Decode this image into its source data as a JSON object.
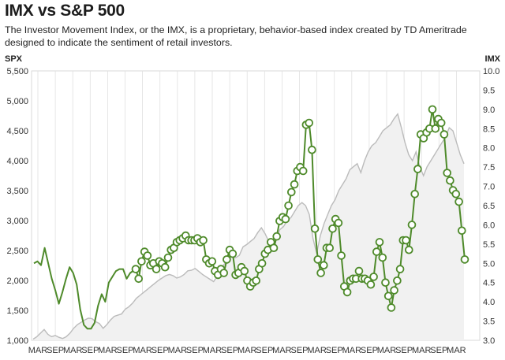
{
  "chart_data": {
    "type": "line",
    "title": "IMX vs S&P 500",
    "subtitle": "The Investor Movement Index, or the IMX, is a proprietary, behavior-based index created by TD Ameritrade designed to indicate the sentiment of retail investors.",
    "left_axis_label": "SPX",
    "right_axis_label": "IMX",
    "left_ylim": [
      1000,
      5500
    ],
    "right_ylim": [
      3.0,
      10.0
    ],
    "left_ticks": [
      "1,000",
      "1,500",
      "2,000",
      "2,500",
      "3,000",
      "3,500",
      "4,000",
      "4,500",
      "5,000",
      "5,500"
    ],
    "right_ticks": [
      "3.0",
      "3.5",
      "4.0",
      "4.5",
      "5.0",
      "5.5",
      "6.0",
      "6.5",
      "7.0",
      "7.5",
      "8.0",
      "8.5",
      "9.0",
      "9.5",
      "10.0"
    ],
    "x_ticks": [
      "MAR",
      "SEP",
      "MAR",
      "SEP",
      "MAR",
      "SEP",
      "MAR",
      "SEP",
      "MAR",
      "SEP",
      "MAR",
      "SEP",
      "MAR",
      "SEP",
      "MAR",
      "SEP",
      "MAR",
      "SEP",
      "MAR",
      "SEP",
      "MAR",
      "SEP",
      "MAR",
      "SEP",
      "MAR"
    ],
    "colors": {
      "imx": "#4e8a2a",
      "spx": "#bbbbbb",
      "spx_fill": "#f1f1f1",
      "grid": "#e0e0e0"
    },
    "series": [
      {
        "name": "IMX",
        "axis": "right",
        "style": "line",
        "values": [
          5.0,
          5.05,
          4.95,
          5.4,
          5.0,
          4.6,
          4.3,
          3.95,
          4.25,
          4.6,
          4.9,
          4.75,
          4.45,
          3.8,
          3.4,
          3.3,
          3.3,
          3.45,
          3.9,
          4.2,
          4.0,
          4.5,
          4.65,
          4.8,
          4.85,
          4.85,
          4.6,
          4.75
        ]
      },
      {
        "name": "IMX",
        "axis": "right",
        "style": "markers",
        "values": [
          4.85,
          4.6,
          5.05,
          5.3,
          5.2,
          4.95,
          5.0,
          4.85,
          5.05,
          5.0,
          4.9,
          5.15,
          5.35,
          5.4,
          5.55,
          5.6,
          5.65,
          5.72,
          5.6,
          5.6,
          5.6,
          5.65,
          5.55,
          5.6,
          5.1,
          5.0,
          5.05,
          4.8,
          4.7,
          4.85,
          4.75,
          5.1,
          5.35,
          5.25,
          4.7,
          4.75,
          4.9,
          4.8,
          4.55,
          4.4,
          4.5,
          4.55,
          4.85,
          5.0,
          5.25,
          5.35,
          5.55,
          5.4,
          5.7,
          6.1,
          6.2,
          6.15,
          6.5,
          6.85,
          7.05,
          7.4,
          7.5,
          7.4,
          8.6,
          8.65,
          7.95,
          5.9,
          5.1,
          4.75,
          4.95,
          5.4,
          5.4,
          5.9,
          6.15,
          6.05,
          5.2,
          4.4,
          4.25,
          4.55,
          4.6,
          4.6,
          4.8,
          4.6,
          4.6,
          4.55,
          4.45,
          4.65,
          5.3,
          5.55,
          5.15,
          4.5,
          4.15,
          3.85,
          4.3,
          4.55,
          4.85,
          5.6,
          5.6,
          5.35,
          6.0,
          6.8,
          7.45,
          8.35,
          8.25,
          8.4,
          8.5,
          9.0,
          8.5,
          8.75,
          8.65,
          8.35,
          7.35,
          7.15,
          6.9,
          6.8,
          6.6,
          5.85,
          5.1
        ]
      },
      {
        "name": "S&P 500",
        "axis": "left",
        "style": "area",
        "values": [
          1020,
          1060,
          1120,
          1180,
          1100,
          1060,
          1080,
          1050,
          1030,
          1060,
          1120,
          1200,
          1260,
          1300,
          1340,
          1370,
          1360,
          1310,
          1280,
          1200,
          1260,
          1340,
          1400,
          1420,
          1440,
          1520,
          1560,
          1620,
          1700,
          1750,
          1800,
          1850,
          1900,
          1950,
          2000,
          2040,
          2080,
          2100,
          2080,
          2040,
          2060,
          2100,
          2160,
          2170,
          2200,
          2150,
          2100,
          2060,
          2020,
          1980,
          2070,
          2200,
          2280,
          2360,
          2400,
          2380,
          2420,
          2560,
          2600,
          2650,
          2700,
          2800,
          2880,
          2780,
          2650,
          2500,
          2700,
          2850,
          2900,
          3000,
          3050,
          3150,
          3250,
          3300,
          3250,
          3100,
          2700,
          2450,
          2750,
          2950,
          3100,
          3250,
          3350,
          3500,
          3600,
          3700,
          3850,
          3900,
          3950,
          3800,
          4000,
          4150,
          4250,
          4300,
          4400,
          4500,
          4550,
          4600,
          4700,
          4780,
          4550,
          4300,
          4100,
          4000,
          4150,
          3900,
          3750,
          3900,
          4000,
          4100,
          4200,
          4300,
          4400,
          4550,
          4500,
          4300,
          4100,
          3950
        ]
      }
    ]
  }
}
